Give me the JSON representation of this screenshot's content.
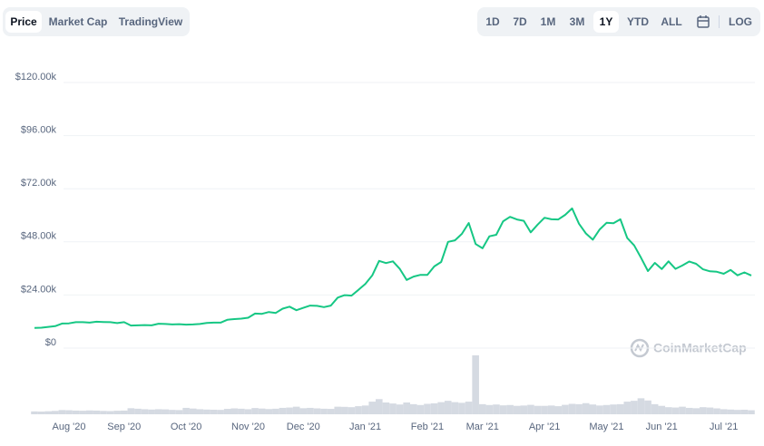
{
  "toolbar": {
    "views": [
      "Price",
      "Market Cap",
      "TradingView"
    ],
    "active_view": "Price",
    "ranges": [
      "1D",
      "7D",
      "1M",
      "3M",
      "1Y",
      "YTD",
      "ALL"
    ],
    "active_range": "1Y",
    "log": "LOG"
  },
  "watermark": "CoinMarketCap",
  "chart_data": {
    "type": "line",
    "color": "#16c784",
    "grid": true,
    "categories": [
      null,
      null,
      null,
      null,
      null,
      "Aug '20",
      null,
      null,
      null,
      null,
      null,
      null,
      null,
      "Sep '20",
      null,
      null,
      null,
      null,
      null,
      null,
      null,
      null,
      "Oct '20",
      null,
      null,
      null,
      null,
      null,
      null,
      null,
      null,
      "Nov '20",
      null,
      null,
      null,
      null,
      null,
      null,
      null,
      "Dec '20",
      null,
      null,
      null,
      null,
      null,
      null,
      null,
      null,
      "Jan '21",
      null,
      null,
      null,
      null,
      null,
      null,
      null,
      null,
      "Feb '21",
      null,
      null,
      null,
      null,
      null,
      null,
      null,
      "Mar '21",
      null,
      null,
      null,
      null,
      null,
      null,
      null,
      null,
      "Apr '21",
      null,
      null,
      null,
      null,
      null,
      null,
      null,
      null,
      "May '21",
      null,
      null,
      null,
      null,
      null,
      null,
      null,
      "Jun '21",
      null,
      null,
      null,
      null,
      null,
      null,
      null,
      null,
      "Jul '21",
      null,
      null,
      null,
      null
    ],
    "values": [
      9100,
      9200,
      9600,
      9900,
      11100,
      11200,
      11700,
      11700,
      11500,
      11900,
      11800,
      11700,
      11300,
      11700,
      10200,
      10300,
      10400,
      10300,
      11000,
      10900,
      10700,
      10800,
      10600,
      10700,
      10900,
      11400,
      11500,
      11500,
      12800,
      13100,
      13300,
      13700,
      15600,
      15500,
      16300,
      15900,
      17800,
      18700,
      17100,
      18200,
      19200,
      19100,
      18500,
      19200,
      22800,
      23900,
      23700,
      26300,
      29000,
      32800,
      39400,
      38400,
      39200,
      35800,
      30800,
      32300,
      33100,
      33100,
      36900,
      38900,
      48000,
      48700,
      51600,
      56500,
      47000,
      45100,
      50500,
      51200,
      57300,
      59300,
      58100,
      57500,
      52300,
      55800,
      58900,
      58200,
      58100,
      60200,
      63100,
      56200,
      51800,
      49000,
      53600,
      56600,
      56400,
      58200,
      49700,
      46400,
      40800,
      34800,
      38500,
      35700,
      39200,
      35800,
      37300,
      39100,
      38100,
      35600,
      34700,
      34500,
      33600,
      35300,
      32900,
      34200,
      32800
    ],
    "volume": {
      "color": "#d5dae2",
      "values": [
        17,
        16,
        18,
        20,
        25,
        24,
        22,
        21,
        23,
        22,
        20,
        19,
        21,
        22,
        36,
        33,
        30,
        28,
        30,
        29,
        26,
        25,
        38,
        34,
        30,
        28,
        27,
        26,
        32,
        35,
        33,
        30,
        37,
        34,
        31,
        33,
        38,
        40,
        45,
        36,
        38,
        35,
        33,
        32,
        45,
        44,
        42,
        48,
        52,
        75,
        90,
        70,
        64,
        58,
        70,
        60,
        55,
        62,
        65,
        72,
        80,
        72,
        68,
        75,
        350,
        60,
        55,
        58,
        53,
        55,
        50,
        52,
        56,
        50,
        50,
        52,
        48,
        56,
        62,
        60,
        66,
        58,
        52,
        55,
        58,
        60,
        75,
        80,
        95,
        82,
        60,
        50,
        42,
        40,
        45,
        38,
        36,
        42,
        40,
        35,
        30,
        28,
        26,
        27,
        24
      ]
    },
    "ylim": [
      0,
      120000
    ],
    "yticks": [
      {
        "value": 0,
        "label": "$0"
      },
      {
        "value": 24000,
        "label": "$24.00k"
      },
      {
        "value": 48000,
        "label": "$48.00k"
      },
      {
        "value": 72000,
        "label": "$72.00k"
      },
      {
        "value": 96000,
        "label": "$96.00k"
      },
      {
        "value": 120000,
        "label": "$120.00k"
      }
    ]
  }
}
